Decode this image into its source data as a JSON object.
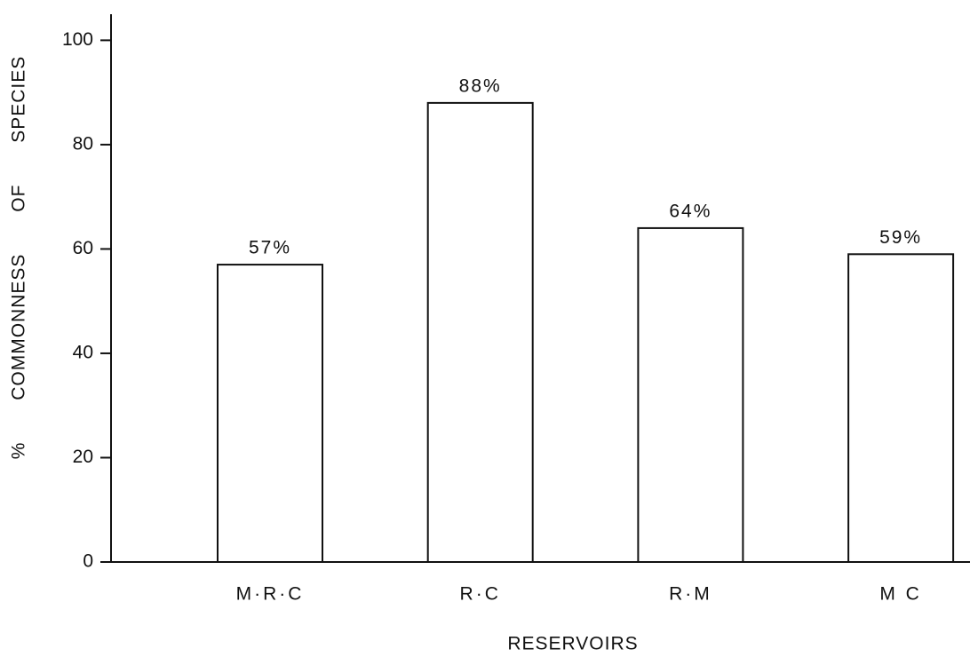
{
  "chart_data": {
    "type": "bar",
    "x_label": "RESERVOIRS",
    "y_label": "% COMMONNESS OF SPECIES",
    "categories": [
      "M·R·C",
      "R·C",
      "R·M",
      "M C"
    ],
    "values": [
      57,
      88,
      64,
      59
    ],
    "value_labels": [
      "57%",
      "88%",
      "64%",
      "59%"
    ],
    "color": "#ffffff",
    "ylim": [
      0,
      105
    ],
    "yticks": [
      0,
      20,
      40,
      60,
      80,
      100
    ],
    "grid": false
  }
}
